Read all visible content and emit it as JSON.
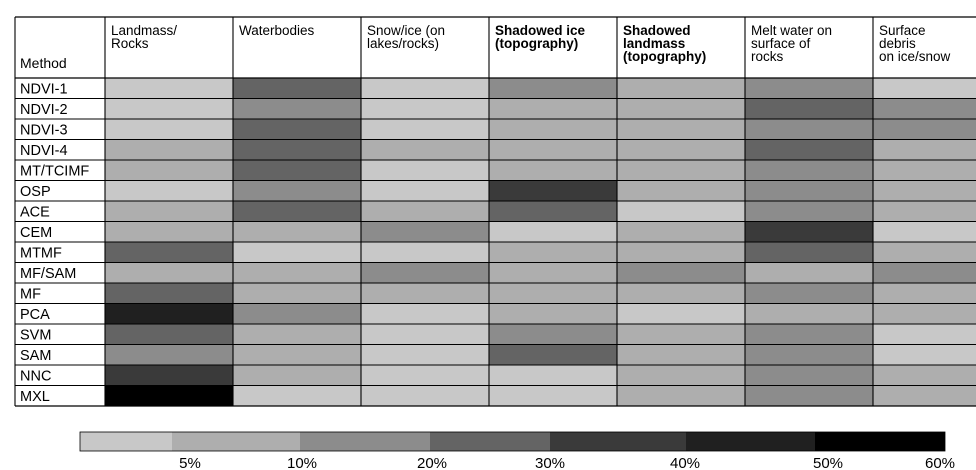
{
  "chart_data": {
    "type": "heatmap",
    "row_header": "Method",
    "columns": [
      [
        "Landmass/",
        "Rocks"
      ],
      [
        "Waterbodies"
      ],
      [
        "Snow/ice (on",
        "lakes/rocks)"
      ],
      [
        "Shadowed ice",
        "(topography)"
      ],
      [
        "Shadowed",
        "landmass",
        "(topography)"
      ],
      [
        "Melt water on",
        "surface of",
        "rocks"
      ],
      [
        "Surface",
        "debris",
        "on ice/snow"
      ]
    ],
    "rows": [
      "NDVI-1",
      "NDVI-2",
      "NDVI-3",
      "NDVI-4",
      "MT/TCIMF",
      "OSP",
      "ACE",
      "CEM",
      "MTMF",
      "MF/SAM",
      "MF",
      "PCA",
      "SVM",
      "SAM",
      "NNC",
      "MXL"
    ],
    "level_colors": [
      "#c8c8c8",
      "#aeaeae",
      "#8c8c8c",
      "#646464",
      "#3a3a3a",
      "#202020",
      "#000000"
    ],
    "values": [
      [
        0,
        3,
        0,
        2,
        1,
        2,
        0
      ],
      [
        0,
        2,
        0,
        1,
        1,
        3,
        2
      ],
      [
        0,
        3,
        0,
        1,
        1,
        2,
        2
      ],
      [
        1,
        3,
        1,
        1,
        1,
        3,
        1
      ],
      [
        1,
        3,
        0,
        1,
        1,
        2,
        1
      ],
      [
        0,
        2,
        0,
        4,
        1,
        2,
        1
      ],
      [
        1,
        3,
        1,
        3,
        0,
        2,
        1
      ],
      [
        1,
        1,
        2,
        0,
        1,
        4,
        0
      ],
      [
        3,
        0,
        0,
        1,
        1,
        3,
        1
      ],
      [
        1,
        1,
        2,
        1,
        2,
        1,
        2
      ],
      [
        3,
        1,
        1,
        1,
        1,
        2,
        1
      ],
      [
        5,
        2,
        0,
        1,
        0,
        1,
        1
      ],
      [
        3,
        1,
        0,
        2,
        1,
        2,
        0
      ],
      [
        2,
        1,
        0,
        3,
        1,
        2,
        0
      ],
      [
        4,
        1,
        0,
        0,
        1,
        2,
        1
      ],
      [
        6,
        0,
        0,
        0,
        1,
        2,
        1
      ]
    ],
    "legend_ticks": [
      "5%",
      "10%",
      "20%",
      "30%",
      "40%",
      "50%",
      "60%"
    ],
    "legend_colors": [
      "#c8c8c8",
      "#aeaeae",
      "#8c8c8c",
      "#646464",
      "#3a3a3a",
      "#202020",
      "#000000"
    ]
  }
}
